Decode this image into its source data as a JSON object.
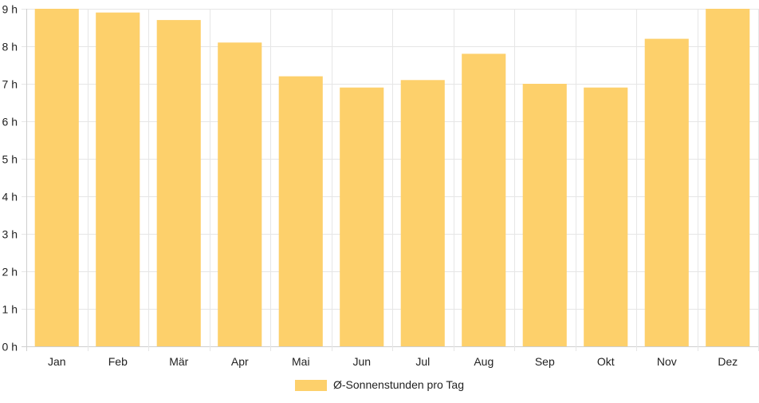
{
  "chart_data": {
    "type": "bar",
    "categories": [
      "Jan",
      "Feb",
      "Mär",
      "Apr",
      "Mai",
      "Jun",
      "Jul",
      "Aug",
      "Sep",
      "Okt",
      "Nov",
      "Dez"
    ],
    "series": [
      {
        "name": "Ø-Sonnenstunden pro Tag",
        "values": [
          9.0,
          8.9,
          8.7,
          8.1,
          7.2,
          6.9,
          7.1,
          7.8,
          7.0,
          6.9,
          8.2,
          9.0
        ]
      }
    ],
    "y_ticks": [
      "0 h",
      "1 h",
      "2 h",
      "3 h",
      "4 h",
      "5 h",
      "6 h",
      "7 h",
      "8 h",
      "9 h"
    ],
    "ylim": [
      0,
      9
    ],
    "grid": true,
    "legend_position": "bottom",
    "colors": {
      "bar": "#fdd06b",
      "grid": "#e6e6e6"
    }
  }
}
